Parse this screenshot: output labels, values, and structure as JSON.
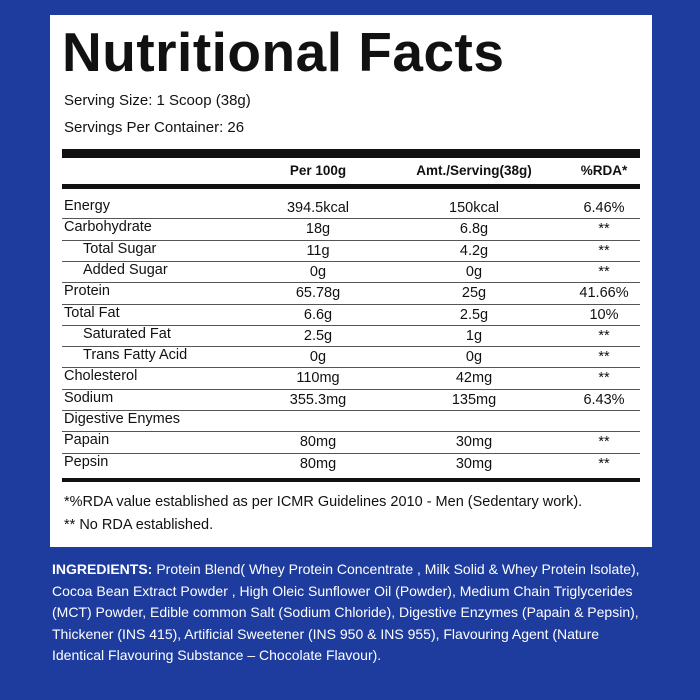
{
  "header": {
    "title": "Nutritional Facts",
    "serving_size": "Serving Size: 1 Scoop (38g)",
    "servings_per_container": "Servings Per Container: 26"
  },
  "table": {
    "columns": [
      "Per 100g",
      "Amt./Serving(38g)",
      "%RDA*"
    ],
    "rows": [
      {
        "cells": [
          "Energy",
          "394.5kcal",
          "150kcal",
          "6.46%"
        ]
      },
      {
        "cells": [
          "Carbohydrate",
          "18g",
          "6.8g",
          "**"
        ]
      },
      {
        "cells": [
          "Total Sugar",
          "11g",
          "4.2g",
          "**"
        ],
        "level": 1
      },
      {
        "cells": [
          "Added Sugar",
          "0g",
          "0g",
          "**"
        ],
        "level": 1
      },
      {
        "cells": [
          "Protein",
          "65.78g",
          "25g",
          "41.66%"
        ]
      },
      {
        "cells": [
          "Total Fat",
          "6.6g",
          "2.5g",
          "10%"
        ]
      },
      {
        "cells": [
          "Saturated Fat",
          "2.5g",
          "1g",
          "**"
        ],
        "level": 1
      },
      {
        "cells": [
          "Trans Fatty Acid",
          "0g",
          "0g",
          "**"
        ],
        "level": 1
      },
      {
        "cells": [
          "Cholesterol",
          "110mg",
          "42mg",
          "**"
        ]
      },
      {
        "cells": [
          "Sodium",
          "355.3mg",
          "135mg",
          "6.43%"
        ]
      },
      {
        "cells": [
          "Digestive Enymes"
        ]
      },
      {
        "cells": [
          "Papain",
          "80mg",
          "30mg",
          "**"
        ]
      },
      {
        "cells": [
          "Pepsin",
          "80mg",
          "30mg",
          "**"
        ]
      }
    ]
  },
  "footnotes": [
    "*%RDA value established as per ICMR Guidelines 2010 - Men (Sedentary work).",
    "** No RDA established."
  ],
  "ingredients": {
    "label": "INGREDIENTS:",
    "lines": [
      "Protein Blend( Whey Protein Concentrate , Milk Solid & Whey Protein Isolate),",
      "Cocoa Bean Extract Powder , High Oleic Sunflower Oil (Powder), Medium Chain Triglycerides",
      "(MCT) Powder, Edible common Salt (Sodium Chloride), Digestive Enzymes (Papain & Pepsin),",
      "Thickener (INS 415), Artificial Sweetener (INS 950 & INS 955), Flavouring Agent (Nature",
      "Identical Flavouring Substance – Chocolate Flavour)."
    ]
  }
}
